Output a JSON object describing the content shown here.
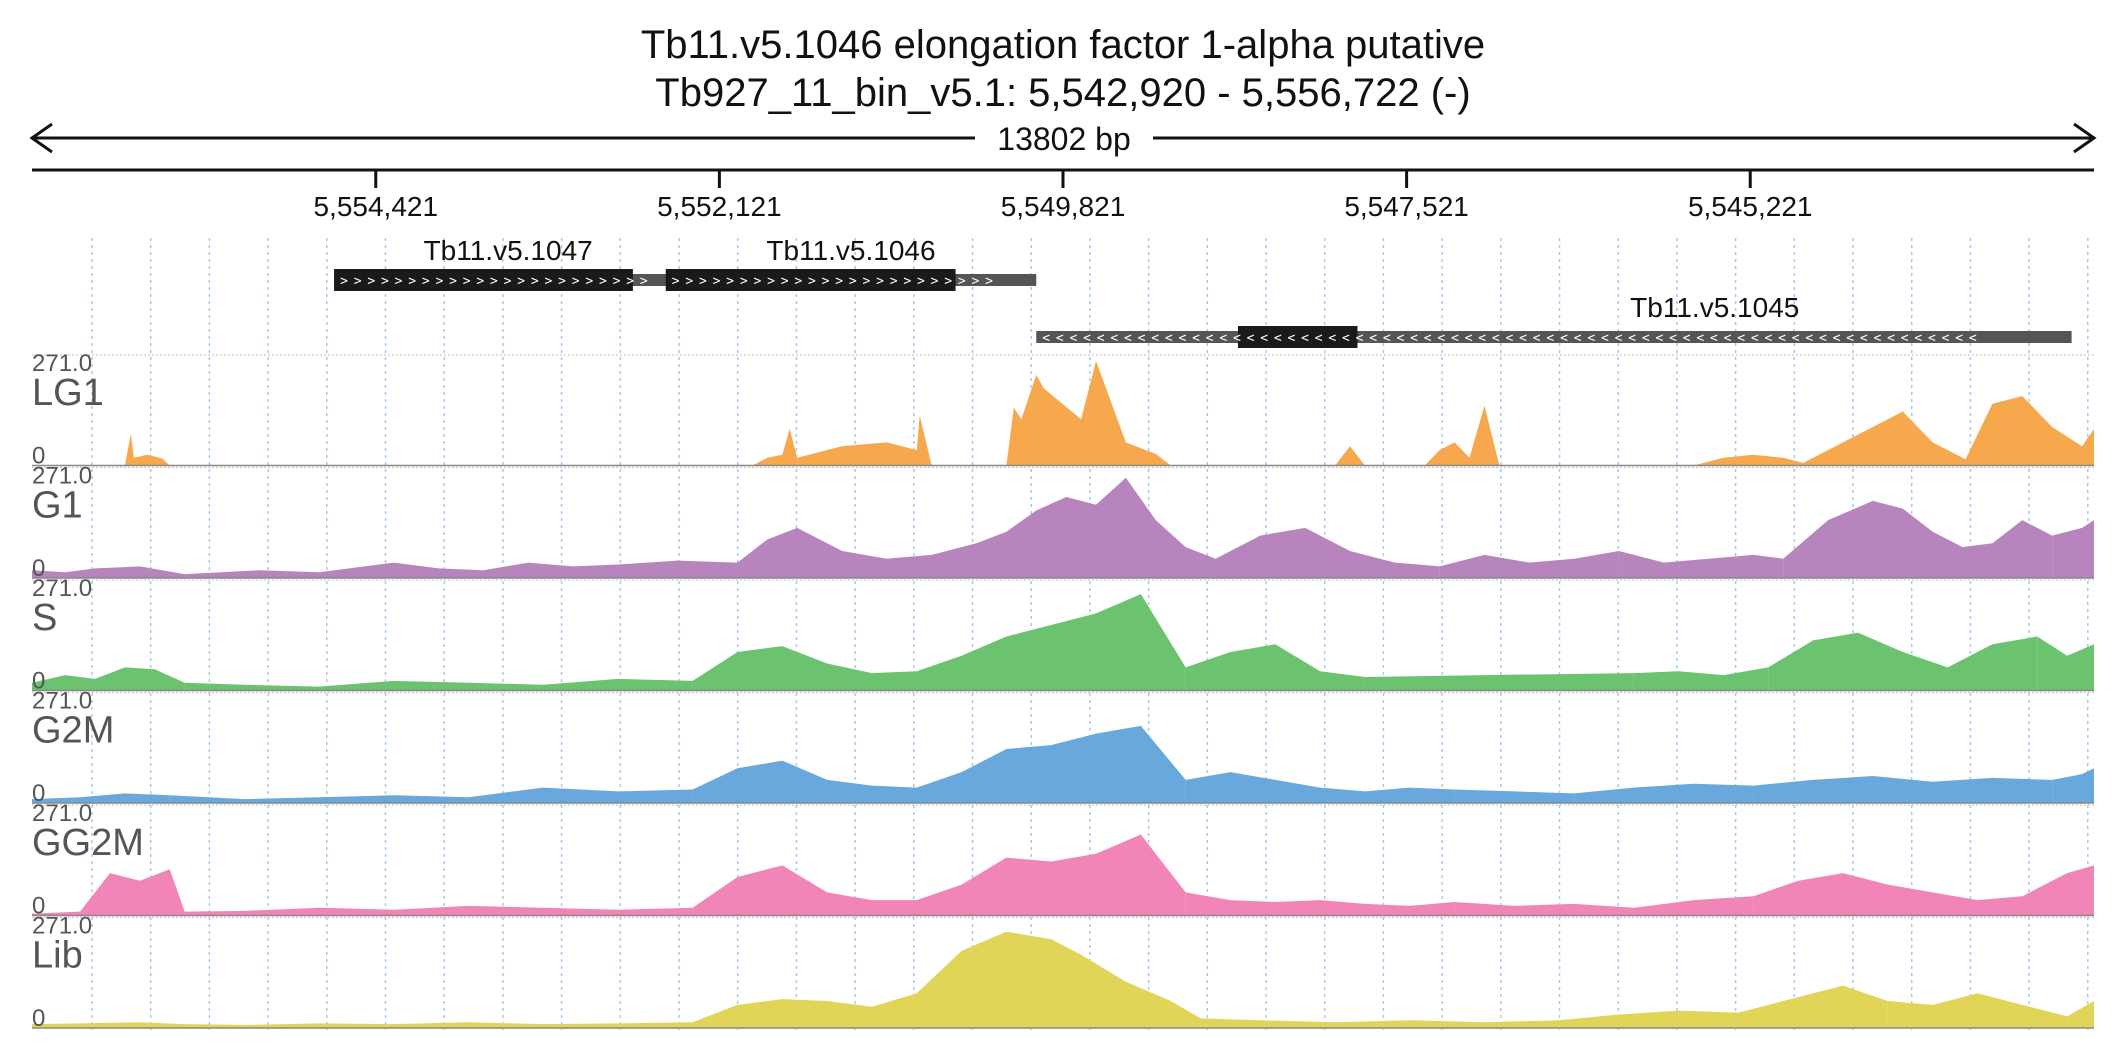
{
  "chart_data": {
    "type": "area",
    "title": "Tb11.v5.1046  elongation factor 1-alpha  putative",
    "subtitle": "Tb927_11_bin_v5.1: 5,542,920 - 5,556,722 (-)",
    "span_label": "13802 bp",
    "region": {
      "start": 5542920,
      "end": 5556722,
      "strand": "-"
    },
    "x_range": [
      5556722,
      5542920
    ],
    "ticks": [
      {
        "value": 5554421,
        "label": "5,554,421"
      },
      {
        "value": 5552121,
        "label": "5,552,121"
      },
      {
        "value": 5549821,
        "label": "5,549,821"
      },
      {
        "value": 5547521,
        "label": "5,547,521"
      },
      {
        "value": 5545221,
        "label": "5,545,221"
      }
    ],
    "genes": [
      {
        "name": "Tb11.v5.1047",
        "strand": "+",
        "start": 5554700,
        "end": 5552370,
        "cds_start": 5554700,
        "cds_end": 5552700
      },
      {
        "name": "Tb11.v5.1046",
        "strand": "+",
        "start": 5552480,
        "end": 5550000,
        "cds_start": 5552480,
        "cds_end": 5550540
      },
      {
        "name": "Tb11.v5.1045",
        "strand": "-",
        "start": 5550000,
        "end": 5543070,
        "cds_start": 5548650,
        "cds_end": 5547850
      }
    ],
    "track_scale": {
      "max_label": "271.0",
      "min_label": "0",
      "ylim": [
        0,
        271
      ]
    },
    "tracks": [
      {
        "name": "LG1",
        "color": "#f8a84c",
        "segments": [
          {
            "x": [
              5556100,
              5556060,
              5556040,
              5555950,
              5555850,
              5555800
            ],
            "y": [
              0,
              82,
              20,
              28,
              18,
              0
            ]
          },
          {
            "x": [
              5551900,
              5551800,
              5551700,
              5551650,
              5551600
            ],
            "y": [
              0,
              20,
              28,
              95,
              20
            ]
          },
          {
            "x": [
              5551600,
              5551300,
              5551000,
              5550800,
              5550780,
              5550700
            ],
            "y": [
              20,
              50,
              60,
              40,
              130,
              0
            ]
          },
          {
            "x": [
              5550200,
              5550150,
              5550100,
              5550000,
              5549950,
              5549700,
              5549600,
              5549400,
              5549200,
              5549100
            ],
            "y": [
              0,
              150,
              120,
              235,
              200,
              120,
              280,
              60,
              30,
              0
            ]
          },
          {
            "x": [
              5548000,
              5547900,
              5547800
            ],
            "y": [
              0,
              50,
              0
            ]
          },
          {
            "x": [
              5547400,
              5547300,
              5547200,
              5547100,
              5547000,
              5546900
            ],
            "y": [
              0,
              40,
              60,
              20,
              155,
              0
            ]
          },
          {
            "x": [
              5545600,
              5545400,
              5545200,
              5545000,
              5544800
            ],
            "y": [
              0,
              20,
              28,
              20,
              0
            ]
          },
          {
            "x": [
              5544900,
              5544600,
              5544200,
              5544000,
              5543800,
              5543700
            ],
            "y": [
              0,
              60,
              140,
              60,
              20,
              0
            ]
          },
          {
            "x": [
              5543800,
              5543600,
              5543400,
              5543200,
              5543000,
              5542920
            ],
            "y": [
              0,
              160,
              180,
              100,
              50,
              95
            ]
          }
        ]
      },
      {
        "name": "G1",
        "color": "#b884bd",
        "segments": [
          {
            "x": [
              5556722,
              5556500,
              5556300,
              5556000,
              5555700
            ],
            "y": [
              20,
              15,
              25,
              30,
              10
            ]
          },
          {
            "x": [
              5555700,
              5555200,
              5554800,
              5554300,
              5554000,
              5553700
            ],
            "y": [
              10,
              20,
              15,
              40,
              25,
              20
            ]
          },
          {
            "x": [
              5553700,
              5553400,
              5553100,
              5552800,
              5552400,
              5552000
            ],
            "y": [
              20,
              40,
              30,
              35,
              45,
              40
            ]
          },
          {
            "x": [
              5552000,
              5551800,
              5551600,
              5551300,
              5551000,
              5550700,
              5550400,
              5550200,
              5550000,
              5549800,
              5549600,
              5549400,
              5549200,
              5549000,
              5548800
            ],
            "y": [
              40,
              100,
              130,
              70,
              50,
              60,
              90,
              120,
              175,
              210,
              190,
              260,
              150,
              80,
              50
            ]
          },
          {
            "x": [
              5548800,
              5548500,
              5548200,
              5547900,
              5547600,
              5547300
            ],
            "y": [
              50,
              110,
              130,
              70,
              40,
              30
            ]
          },
          {
            "x": [
              5547300,
              5547000,
              5546700,
              5546400,
              5546100
            ],
            "y": [
              30,
              60,
              40,
              50,
              70
            ]
          },
          {
            "x": [
              5546100,
              5545800,
              5545500,
              5545200,
              5545000
            ],
            "y": [
              70,
              40,
              50,
              60,
              50
            ]
          },
          {
            "x": [
              5545000,
              5544700,
              5544400,
              5544200,
              5544000,
              5543800,
              5543600,
              5543400,
              5543200
            ],
            "y": [
              50,
              150,
              200,
              180,
              120,
              80,
              90,
              150,
              110
            ]
          },
          {
            "x": [
              5543200,
              5543000,
              5542920
            ],
            "y": [
              110,
              130,
              150
            ]
          }
        ]
      },
      {
        "name": "S",
        "color": "#6cc36f",
        "segments": [
          {
            "x": [
              5556722,
              5556500,
              5556300,
              5556100,
              5555900,
              5555700
            ],
            "y": [
              20,
              40,
              30,
              60,
              55,
              20
            ]
          },
          {
            "x": [
              5555700,
              5555300,
              5554800,
              5554300,
              5553800,
              5553300,
              5552800,
              5552300
            ],
            "y": [
              20,
              15,
              10,
              25,
              20,
              15,
              30,
              25
            ]
          },
          {
            "x": [
              5552300,
              5552000,
              5551700,
              5551400,
              5551100,
              5550800,
              5550500,
              5550200,
              5549900,
              5549600,
              5549300,
              5549000
            ],
            "y": [
              25,
              100,
              115,
              70,
              45,
              50,
              90,
              140,
              170,
              200,
              250,
              60
            ]
          },
          {
            "x": [
              5549000,
              5548700,
              5548400,
              5548100,
              5547800
            ],
            "y": [
              60,
              100,
              120,
              50,
              35
            ]
          },
          {
            "x": [
              5547800,
              5547000,
              5546000
            ],
            "y": [
              35,
              40,
              45
            ]
          },
          {
            "x": [
              5546000,
              5545700,
              5545400,
              5545100
            ],
            "y": [
              45,
              50,
              40,
              60
            ]
          },
          {
            "x": [
              5545100,
              5544800,
              5544500,
              5544200,
              5543900,
              5543600,
              5543300
            ],
            "y": [
              60,
              130,
              150,
              100,
              60,
              120,
              140
            ]
          },
          {
            "x": [
              5543300,
              5543100,
              5542920
            ],
            "y": [
              140,
              90,
              120
            ]
          }
        ]
      },
      {
        "name": "G2M",
        "color": "#68a8dc",
        "segments": [
          {
            "x": [
              5556722,
              5556400,
              5556100,
              5555800
            ],
            "y": [
              10,
              15,
              25,
              20
            ]
          },
          {
            "x": [
              5555800,
              5555300,
              5554800,
              5554300,
              5553800,
              5553300,
              5552800,
              5552300
            ],
            "y": [
              20,
              10,
              15,
              20,
              15,
              40,
              30,
              35
            ]
          },
          {
            "x": [
              5552300,
              5552000,
              5551700,
              5551400,
              5551100,
              5550800,
              5550500,
              5550200,
              5549900,
              5549600,
              5549300,
              5549000
            ],
            "y": [
              35,
              90,
              110,
              60,
              45,
              40,
              80,
              140,
              150,
              180,
              200,
              60
            ]
          },
          {
            "x": [
              5549000,
              5548700,
              5548400,
              5548100,
              5547800,
              5547500,
              5547200
            ],
            "y": [
              60,
              80,
              60,
              40,
              30,
              40,
              35
            ]
          },
          {
            "x": [
              5547200,
              5546800,
              5546400
            ],
            "y": [
              35,
              30,
              25
            ]
          },
          {
            "x": [
              5546400,
              5546000,
              5545600,
              5545200
            ],
            "y": [
              25,
              40,
              50,
              45
            ]
          },
          {
            "x": [
              5545200,
              5544800,
              5544400,
              5544000,
              5543600,
              5543200
            ],
            "y": [
              45,
              60,
              70,
              55,
              65,
              60
            ]
          },
          {
            "x": [
              5543200,
              5543000,
              5542920
            ],
            "y": [
              60,
              75,
              90
            ]
          }
        ]
      },
      {
        "name": "GG2M",
        "color": "#f185b7",
        "segments": [
          {
            "x": [
              5556722,
              5556400,
              5556200,
              5556000,
              5555800,
              5555700
            ],
            "y": [
              5,
              10,
              110,
              90,
              120,
              10
            ]
          },
          {
            "x": [
              5555700,
              5555300,
              5554800,
              5554300,
              5553800,
              5553300,
              5552800,
              5552300
            ],
            "y": [
              10,
              12,
              20,
              15,
              25,
              20,
              15,
              20
            ]
          },
          {
            "x": [
              5552300,
              5552000,
              5551700,
              5551400,
              5551100,
              5550800,
              5550500,
              5550200,
              5549900,
              5549600,
              5549300,
              5549000
            ],
            "y": [
              20,
              100,
              130,
              60,
              40,
              40,
              80,
              150,
              140,
              160,
              210,
              60
            ]
          },
          {
            "x": [
              5549000,
              5548700,
              5548400,
              5548100,
              5547800,
              5547500,
              5547200
            ],
            "y": [
              60,
              40,
              35,
              40,
              30,
              25,
              35
            ]
          },
          {
            "x": [
              5547200,
              5546800,
              5546400,
              5546000,
              5545600,
              5545200
            ],
            "y": [
              35,
              25,
              30,
              20,
              40,
              50
            ]
          },
          {
            "x": [
              5545200,
              5544900,
              5544600,
              5544300,
              5544000,
              5543700
            ],
            "y": [
              50,
              90,
              110,
              80,
              60,
              40
            ]
          },
          {
            "x": [
              5543700,
              5543400,
              5543100,
              5542920
            ],
            "y": [
              40,
              50,
              110,
              130
            ]
          }
        ]
      },
      {
        "name": "Lib",
        "color": "#e1d557",
        "segments": [
          {
            "x": [
              5556722,
              5556400,
              5556000,
              5555700
            ],
            "y": [
              10,
              12,
              15,
              10
            ]
          },
          {
            "x": [
              5555700,
              5555300,
              5554800,
              5554300,
              5553800,
              5553300,
              5552800,
              5552300
            ],
            "y": [
              10,
              8,
              12,
              10,
              15,
              10,
              12,
              15
            ]
          },
          {
            "x": [
              5552300,
              5552000,
              5551700,
              5551400,
              5551100,
              5550800,
              5550500,
              5550200,
              5549900,
              5549700,
              5549400,
              5549100,
              5548900
            ],
            "y": [
              15,
              60,
              75,
              70,
              55,
              90,
              200,
              250,
              230,
              190,
              120,
              70,
              25
            ]
          },
          {
            "x": [
              5548900,
              5548500,
              5548000,
              5547500,
              5547000,
              5546500
            ],
            "y": [
              25,
              20,
              15,
              20,
              15,
              20
            ]
          },
          {
            "x": [
              5546500,
              5546100,
              5545700,
              5545300,
              5544900,
              5544600,
              5544300
            ],
            "y": [
              20,
              35,
              45,
              40,
              80,
              110,
              70
            ]
          },
          {
            "x": [
              5544300,
              5544000,
              5543700,
              5543400,
              5543100
            ],
            "y": [
              70,
              60,
              90,
              60,
              30
            ]
          },
          {
            "x": [
              5543100,
              5542920
            ],
            "y": [
              30,
              70
            ]
          }
        ]
      }
    ]
  }
}
